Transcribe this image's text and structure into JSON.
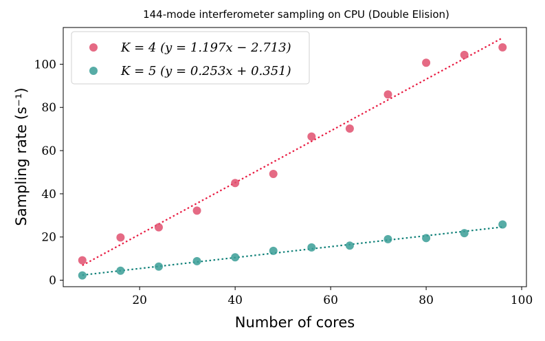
{
  "chart_data": {
    "type": "scatter",
    "title": "144-mode interferometer sampling on CPU (Double Elision)",
    "xlabel": "Number of cores",
    "ylabel": "Sampling rate (s⁻¹)",
    "xlim": [
      4,
      101
    ],
    "ylim": [
      -3,
      117
    ],
    "xticks": [
      20,
      40,
      60,
      80,
      100
    ],
    "yticks": [
      0,
      20,
      40,
      60,
      80,
      100
    ],
    "legend_position": "top-left",
    "grid": false,
    "series": [
      {
        "name": "K = 4 (y = 1.197x − 2.713)",
        "color": "#e0506e",
        "fit_color": "#e8173e",
        "x": [
          8,
          16,
          24,
          32,
          40,
          48,
          56,
          64,
          72,
          80,
          88,
          96
        ],
        "y": [
          9.2,
          19.8,
          24.5,
          32.2,
          45.0,
          49.2,
          66.5,
          70.2,
          86.0,
          100.7,
          104.3,
          107.8
        ],
        "fit": {
          "slope": 1.197,
          "intercept": -2.713,
          "x_range": [
            8,
            96
          ]
        }
      },
      {
        "name": "K = 5 (y = 0.253x + 0.351)",
        "color": "#3a9e96",
        "fit_color": "#0f8078",
        "x": [
          8,
          16,
          24,
          32,
          40,
          48,
          56,
          64,
          72,
          80,
          88,
          96
        ],
        "y": [
          2.2,
          4.4,
          6.3,
          8.8,
          10.6,
          13.6,
          15.2,
          16.0,
          19.0,
          19.5,
          21.8,
          25.8
        ],
        "fit": {
          "slope": 0.253,
          "intercept": 0.351,
          "x_range": [
            8,
            96
          ]
        }
      }
    ]
  }
}
